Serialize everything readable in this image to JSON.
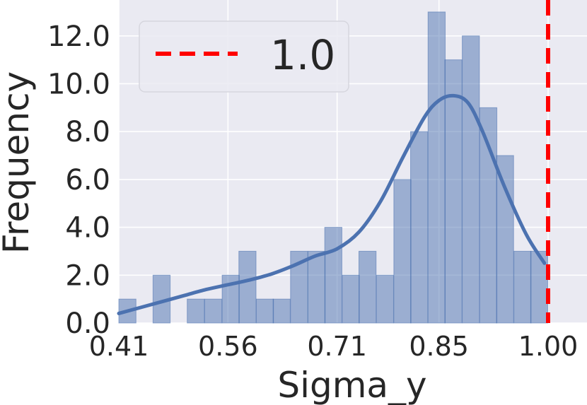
{
  "chart_data": {
    "type": "histogram",
    "xlabel": "Sigma_y",
    "ylabel": "Frequency",
    "xlim": [
      0.41,
      1.0
    ],
    "ylim": [
      0,
      13.5
    ],
    "xticks": [
      0.41,
      0.56,
      0.71,
      0.85,
      1.0
    ],
    "xtick_labels": [
      "0.41",
      "0.56",
      "0.71",
      "0.85",
      "1.00"
    ],
    "yticks": [
      0,
      2,
      4,
      6,
      8,
      10,
      12
    ],
    "ytick_labels": [
      "0.0",
      "2.0",
      "4.0",
      "6.0",
      "8.0",
      "10.0",
      "12.0"
    ],
    "bin_width": 0.0236,
    "bins": [
      {
        "x": 0.41,
        "count": 1
      },
      {
        "x": 0.434,
        "count": 0
      },
      {
        "x": 0.457,
        "count": 2
      },
      {
        "x": 0.481,
        "count": 0
      },
      {
        "x": 0.504,
        "count": 1
      },
      {
        "x": 0.528,
        "count": 1
      },
      {
        "x": 0.552,
        "count": 2
      },
      {
        "x": 0.575,
        "count": 3
      },
      {
        "x": 0.599,
        "count": 1
      },
      {
        "x": 0.622,
        "count": 1
      },
      {
        "x": 0.646,
        "count": 3
      },
      {
        "x": 0.67,
        "count": 3
      },
      {
        "x": 0.693,
        "count": 4
      },
      {
        "x": 0.717,
        "count": 2
      },
      {
        "x": 0.74,
        "count": 3
      },
      {
        "x": 0.764,
        "count": 2
      },
      {
        "x": 0.788,
        "count": 6
      },
      {
        "x": 0.811,
        "count": 8
      },
      {
        "x": 0.835,
        "count": 13
      },
      {
        "x": 0.858,
        "count": 11
      },
      {
        "x": 0.882,
        "count": 12
      },
      {
        "x": 0.906,
        "count": 9
      },
      {
        "x": 0.929,
        "count": 7
      },
      {
        "x": 0.953,
        "count": 3
      },
      {
        "x": 0.976,
        "count": 3
      }
    ],
    "kde": {
      "x": [
        0.41,
        0.44,
        0.47,
        0.5,
        0.53,
        0.56,
        0.59,
        0.62,
        0.65,
        0.68,
        0.71,
        0.74,
        0.77,
        0.8,
        0.83,
        0.85,
        0.87,
        0.89,
        0.91,
        0.94,
        0.97,
        0.995
      ],
      "y": [
        0.4,
        0.65,
        0.9,
        1.15,
        1.4,
        1.6,
        1.8,
        2.05,
        2.4,
        2.8,
        3.1,
        3.8,
        5.1,
        6.9,
        8.6,
        9.3,
        9.5,
        9.2,
        8.0,
        5.7,
        3.7,
        2.5
      ]
    },
    "reference_line": {
      "x": 1.0,
      "label": "1.0",
      "color": "#ff0000",
      "style": "dashed"
    },
    "bar_color": "#4c72b0",
    "kde_color": "#4c72b0",
    "background": "#eaeaf2",
    "grid": true,
    "legend": {
      "position": "top-left",
      "entries": [
        "1.0"
      ]
    }
  }
}
